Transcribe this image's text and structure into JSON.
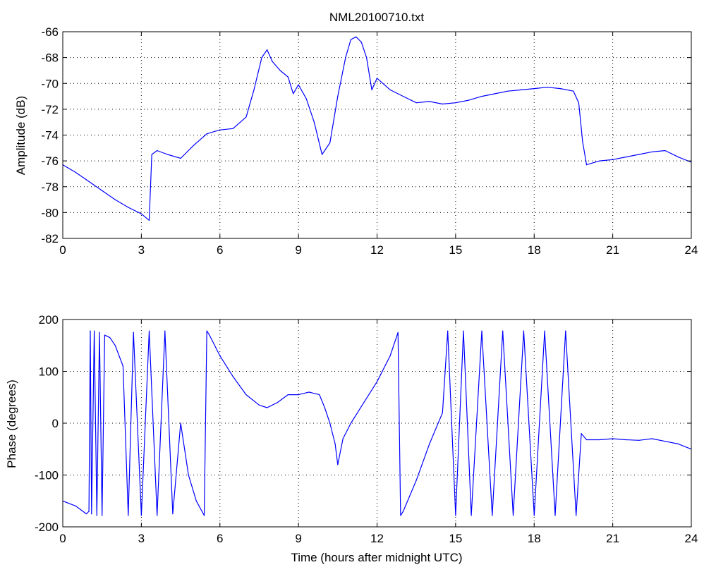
{
  "chart_data": [
    {
      "type": "line",
      "title": "NML20100710.txt",
      "xlabel": "",
      "ylabel": "Amplitude (dB)",
      "xlim": [
        0,
        24
      ],
      "ylim": [
        -82,
        -66
      ],
      "xticks": [
        0,
        3,
        6,
        9,
        12,
        15,
        18,
        21,
        24
      ],
      "xtick_labels": [
        "0",
        "3",
        "6",
        "9",
        "12",
        "15",
        "18",
        "21",
        "24"
      ],
      "yticks": [
        -82,
        -80,
        -78,
        -76,
        -74,
        -72,
        -70,
        -68,
        -66
      ],
      "ytick_labels": [
        "-82",
        "-80",
        "-78",
        "-76",
        "-74",
        "-72",
        "-70",
        "-68",
        "-66"
      ],
      "grid": true,
      "line_color": "#0000ff",
      "series": [
        {
          "x": [
            0,
            0.5,
            1,
            1.5,
            2,
            2.5,
            3,
            3.3,
            3.4,
            3.6,
            4,
            4.5,
            5,
            5.5,
            6,
            6.5,
            7,
            7.3,
            7.6,
            7.8,
            8,
            8.3,
            8.6,
            8.8,
            9.0,
            9.3,
            9.6,
            9.9,
            10.2,
            10.5,
            10.8,
            11.0,
            11.2,
            11.4,
            11.6,
            11.8,
            12,
            12.5,
            13,
            13.5,
            14,
            14.5,
            15,
            15.5,
            16,
            16.5,
            17,
            17.5,
            18,
            18.5,
            19,
            19.5,
            19.7,
            19.85,
            20,
            20.5,
            21,
            21.5,
            22,
            22.5,
            23,
            23.5,
            24
          ],
          "y": [
            -76.3,
            -76.9,
            -77.6,
            -78.3,
            -79.0,
            -79.6,
            -80.1,
            -80.6,
            -75.5,
            -75.2,
            -75.5,
            -75.8,
            -74.8,
            -73.9,
            -73.6,
            -73.5,
            -72.6,
            -70.5,
            -68.0,
            -67.4,
            -68.3,
            -69.0,
            -69.5,
            -70.8,
            -70.1,
            -71.2,
            -73.0,
            -75.5,
            -74.6,
            -71.0,
            -68.0,
            -66.6,
            -66.4,
            -66.8,
            -68.0,
            -70.5,
            -69.6,
            -70.5,
            -71.0,
            -71.5,
            -71.4,
            -71.6,
            -71.5,
            -71.3,
            -71.0,
            -70.8,
            -70.6,
            -70.5,
            -70.4,
            -70.3,
            -70.4,
            -70.6,
            -71.5,
            -74.5,
            -76.3,
            -76.0,
            -75.9,
            -75.7,
            -75.5,
            -75.3,
            -75.2,
            -75.7,
            -76.1
          ]
        }
      ]
    },
    {
      "type": "line",
      "title": "",
      "xlabel": "Time (hours after midnight UTC)",
      "ylabel": "Phase (degrees)",
      "xlim": [
        0,
        24
      ],
      "ylim": [
        -200,
        200
      ],
      "xticks": [
        0,
        3,
        6,
        9,
        12,
        15,
        18,
        21,
        24
      ],
      "xtick_labels": [
        "0",
        "3",
        "6",
        "9",
        "12",
        "15",
        "18",
        "21",
        "24"
      ],
      "yticks": [
        -200,
        -100,
        0,
        100,
        200
      ],
      "ytick_labels": [
        "-200",
        "-100",
        "0",
        "100",
        "200"
      ],
      "grid": true,
      "line_color": "#0000ff",
      "series": [
        {
          "x": [
            0,
            0.5,
            0.9,
            1.0,
            1.05,
            1.1,
            1.2,
            1.3,
            1.4,
            1.5,
            1.6,
            1.8,
            2.0,
            2.3,
            2.5,
            2.7,
            3.0,
            3.3,
            3.6,
            3.9,
            4.2,
            4.5,
            4.8,
            5.1,
            5.4,
            5.5,
            5.6,
            6.0,
            6.5,
            7.0,
            7.5,
            7.8,
            8.2,
            8.6,
            9.0,
            9.4,
            9.8,
            10.0,
            10.2,
            10.4,
            10.5,
            10.7,
            11.0,
            11.5,
            12.0,
            12.5,
            12.8,
            12.9,
            13.0,
            13.5,
            14.0,
            14.5,
            14.7,
            15.0,
            15.3,
            15.6,
            16.0,
            16.4,
            16.8,
            17.2,
            17.6,
            18.0,
            18.4,
            18.8,
            19.2,
            19.6,
            19.8,
            20.0,
            20.5,
            21.0,
            21.5,
            22.0,
            22.5,
            23.0,
            23.5,
            24.0
          ],
          "y": [
            -150,
            -160,
            -175,
            -170,
            178,
            -175,
            178,
            -178,
            175,
            -178,
            170,
            165,
            150,
            110,
            -178,
            175,
            -178,
            178,
            -178,
            178,
            -175,
            0,
            -100,
            -150,
            -178,
            178,
            170,
            130,
            90,
            55,
            35,
            30,
            40,
            55,
            55,
            60,
            55,
            30,
            0,
            -40,
            -80,
            -30,
            0,
            40,
            80,
            130,
            175,
            -178,
            -170,
            -110,
            -40,
            20,
            178,
            -178,
            178,
            -178,
            178,
            -178,
            178,
            -178,
            178,
            -178,
            178,
            -178,
            178,
            -178,
            -20,
            -32,
            -32,
            -30,
            -32,
            -33,
            -30,
            -35,
            -40,
            -50
          ]
        }
      ]
    }
  ]
}
